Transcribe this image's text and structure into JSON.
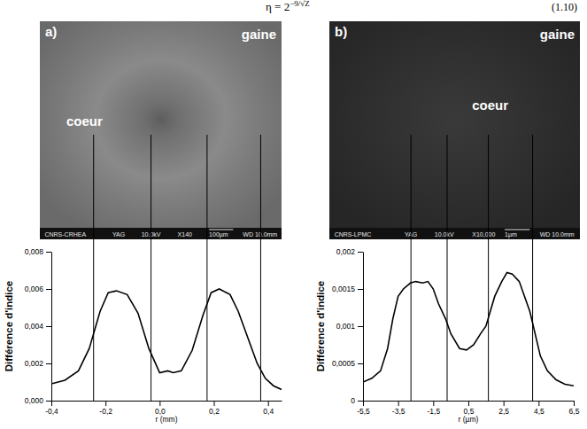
{
  "header": {
    "formula": "η = 2",
    "formula_exponent": "−9/√Z",
    "equation_number": "(1.10)"
  },
  "chart_data": [
    {
      "type": "line",
      "title": "a)",
      "x_label": "r (mm)",
      "y_label": "Différence d'indice",
      "annotations": {
        "cladding": "gaine",
        "core": "coeur"
      },
      "image_caption": [
        "CNRS-CRHEA",
        "YAG",
        "10.0kV",
        "X140",
        "100µm",
        "WD 10.0mm"
      ],
      "x": [
        -0.4,
        -0.35,
        -0.3,
        -0.26,
        -0.22,
        -0.19,
        -0.16,
        -0.12,
        -0.08,
        -0.04,
        0.0,
        0.03,
        0.05,
        0.08,
        0.12,
        0.16,
        0.19,
        0.22,
        0.26,
        0.29,
        0.31,
        0.34,
        0.36,
        0.39,
        0.42,
        0.45
      ],
      "series": [
        {
          "color": "#000000",
          "values": [
            0.0009,
            0.0011,
            0.0016,
            0.0028,
            0.0048,
            0.0058,
            0.0059,
            0.0057,
            0.0047,
            0.0028,
            0.0015,
            0.0016,
            0.0015,
            0.0016,
            0.0027,
            0.0046,
            0.0058,
            0.006,
            0.0057,
            0.0048,
            0.004,
            0.0028,
            0.002,
            0.0012,
            0.0008,
            0.0006
          ]
        }
      ],
      "markers": [
        -0.244,
        -0.032,
        0.175,
        0.373
      ],
      "xlim": [
        -0.4,
        0.45
      ],
      "xticks": [
        {
          "value": -0.4,
          "label": "-0,4"
        },
        {
          "value": -0.2,
          "label": "-0,2"
        },
        {
          "value": 0.0,
          "label": "0,0"
        },
        {
          "value": 0.2,
          "label": "0,2"
        },
        {
          "value": 0.4,
          "label": "0,4"
        }
      ],
      "ylim": [
        0,
        0.008
      ],
      "yticks": [
        {
          "value": 0,
          "label": "0,000"
        },
        {
          "value": 0.002,
          "label": "0,002"
        },
        {
          "value": 0.004,
          "label": "0,004"
        },
        {
          "value": 0.006,
          "label": "0,006"
        },
        {
          "value": 0.008,
          "label": "0,008"
        }
      ],
      "grid": false
    },
    {
      "type": "line",
      "title": "b)",
      "x_label": "r (µm)",
      "y_label": "Différence d'indice",
      "annotations": {
        "cladding": "gaine",
        "core": "coeur"
      },
      "image_caption": [
        "CNRS-LPMC",
        "YAG",
        "10.0kV",
        "X10,000",
        "1µm",
        "WD 10.0mm"
      ],
      "x": [
        -5.5,
        -5.0,
        -4.5,
        -4.1,
        -3.8,
        -3.5,
        -3.2,
        -2.8,
        -2.5,
        -2.1,
        -1.8,
        -1.5,
        -1.2,
        -0.8,
        -0.5,
        0.0,
        0.4,
        0.8,
        1.2,
        1.5,
        2.0,
        2.4,
        2.7,
        3.0,
        3.4,
        3.7,
        4.0,
        4.3,
        4.6,
        5.0,
        5.5,
        6.0,
        6.5
      ],
      "series": [
        {
          "color": "#000000",
          "values": [
            0.00025,
            0.0003,
            0.0004,
            0.0007,
            0.0011,
            0.0014,
            0.0015,
            0.00158,
            0.0016,
            0.00158,
            0.0016,
            0.0015,
            0.0013,
            0.0011,
            0.0009,
            0.0007,
            0.00068,
            0.00075,
            0.0009,
            0.001,
            0.0014,
            0.0016,
            0.00172,
            0.0017,
            0.0016,
            0.0014,
            0.0012,
            0.0009,
            0.0006,
            0.0004,
            0.00028,
            0.00022,
            0.0002
          ]
        }
      ],
      "markers": [
        -2.77,
        -0.71,
        1.64,
        4.16
      ],
      "xlim": [
        -5.5,
        6.5
      ],
      "xticks": [
        {
          "value": -5.5,
          "label": "-5,5"
        },
        {
          "value": -3.5,
          "label": "-3,5"
        },
        {
          "value": -1.5,
          "label": "-1,5"
        },
        {
          "value": 0.5,
          "label": "0,5"
        },
        {
          "value": 2.5,
          "label": "2,5"
        },
        {
          "value": 4.5,
          "label": "4,5"
        },
        {
          "value": 6.5,
          "label": "6,5"
        }
      ],
      "ylim": [
        0,
        0.002
      ],
      "yticks": [
        0,
        {
          "value": 0.0005,
          "label": "0,0005"
        },
        {
          "value": 0.001,
          "label": "0,001"
        },
        {
          "value": 0.0015,
          "label": "0,0015"
        },
        {
          "value": 0.002,
          "label": "0,002"
        }
      ],
      "grid": false
    }
  ]
}
